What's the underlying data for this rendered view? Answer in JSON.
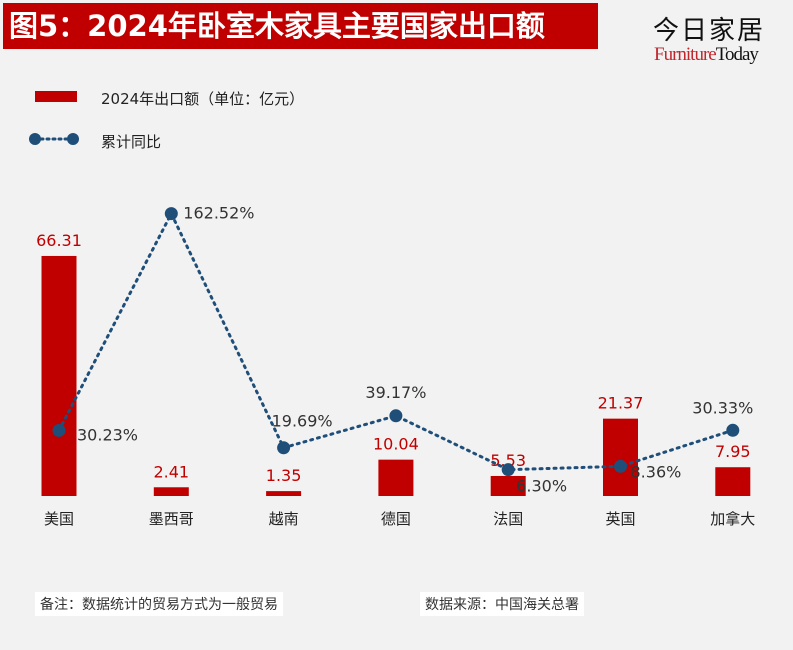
{
  "title": "图5：2024年卧室木家具主要国家出口额",
  "logo": {
    "cn": "今日家居",
    "en_a": "Furniture",
    "en_b": "Today"
  },
  "chart_data": {
    "type": "bar+line",
    "categories": [
      "美国",
      "墨西哥",
      "越南",
      "德国",
      "法国",
      "英国",
      "加拿大"
    ],
    "series": [
      {
        "name": "2024年出口额（单位：亿元）",
        "type": "bar",
        "color": "#c00000",
        "values": [
          66.31,
          2.41,
          1.35,
          10.04,
          5.53,
          21.37,
          7.95
        ],
        "labels": [
          "66.31",
          "2.41",
          "1.35",
          "10.04",
          "5.53",
          "21.37",
          "7.95"
        ]
      },
      {
        "name": "累计同比",
        "type": "line",
        "style": "dotted",
        "color": "#1f4e79",
        "values": [
          30.23,
          162.52,
          19.69,
          39.17,
          6.3,
          8.36,
          30.33
        ],
        "labels": [
          "30.23%",
          "162.52%",
          "19.69%",
          "39.17%",
          "6.30%",
          "8.36%",
          "30.33%"
        ]
      }
    ],
    "legend": "top-left",
    "grid": false
  },
  "notes": {
    "left": "备注：数据统计的贸易方式为一般贸易",
    "right": "数据来源：中国海关总署"
  }
}
